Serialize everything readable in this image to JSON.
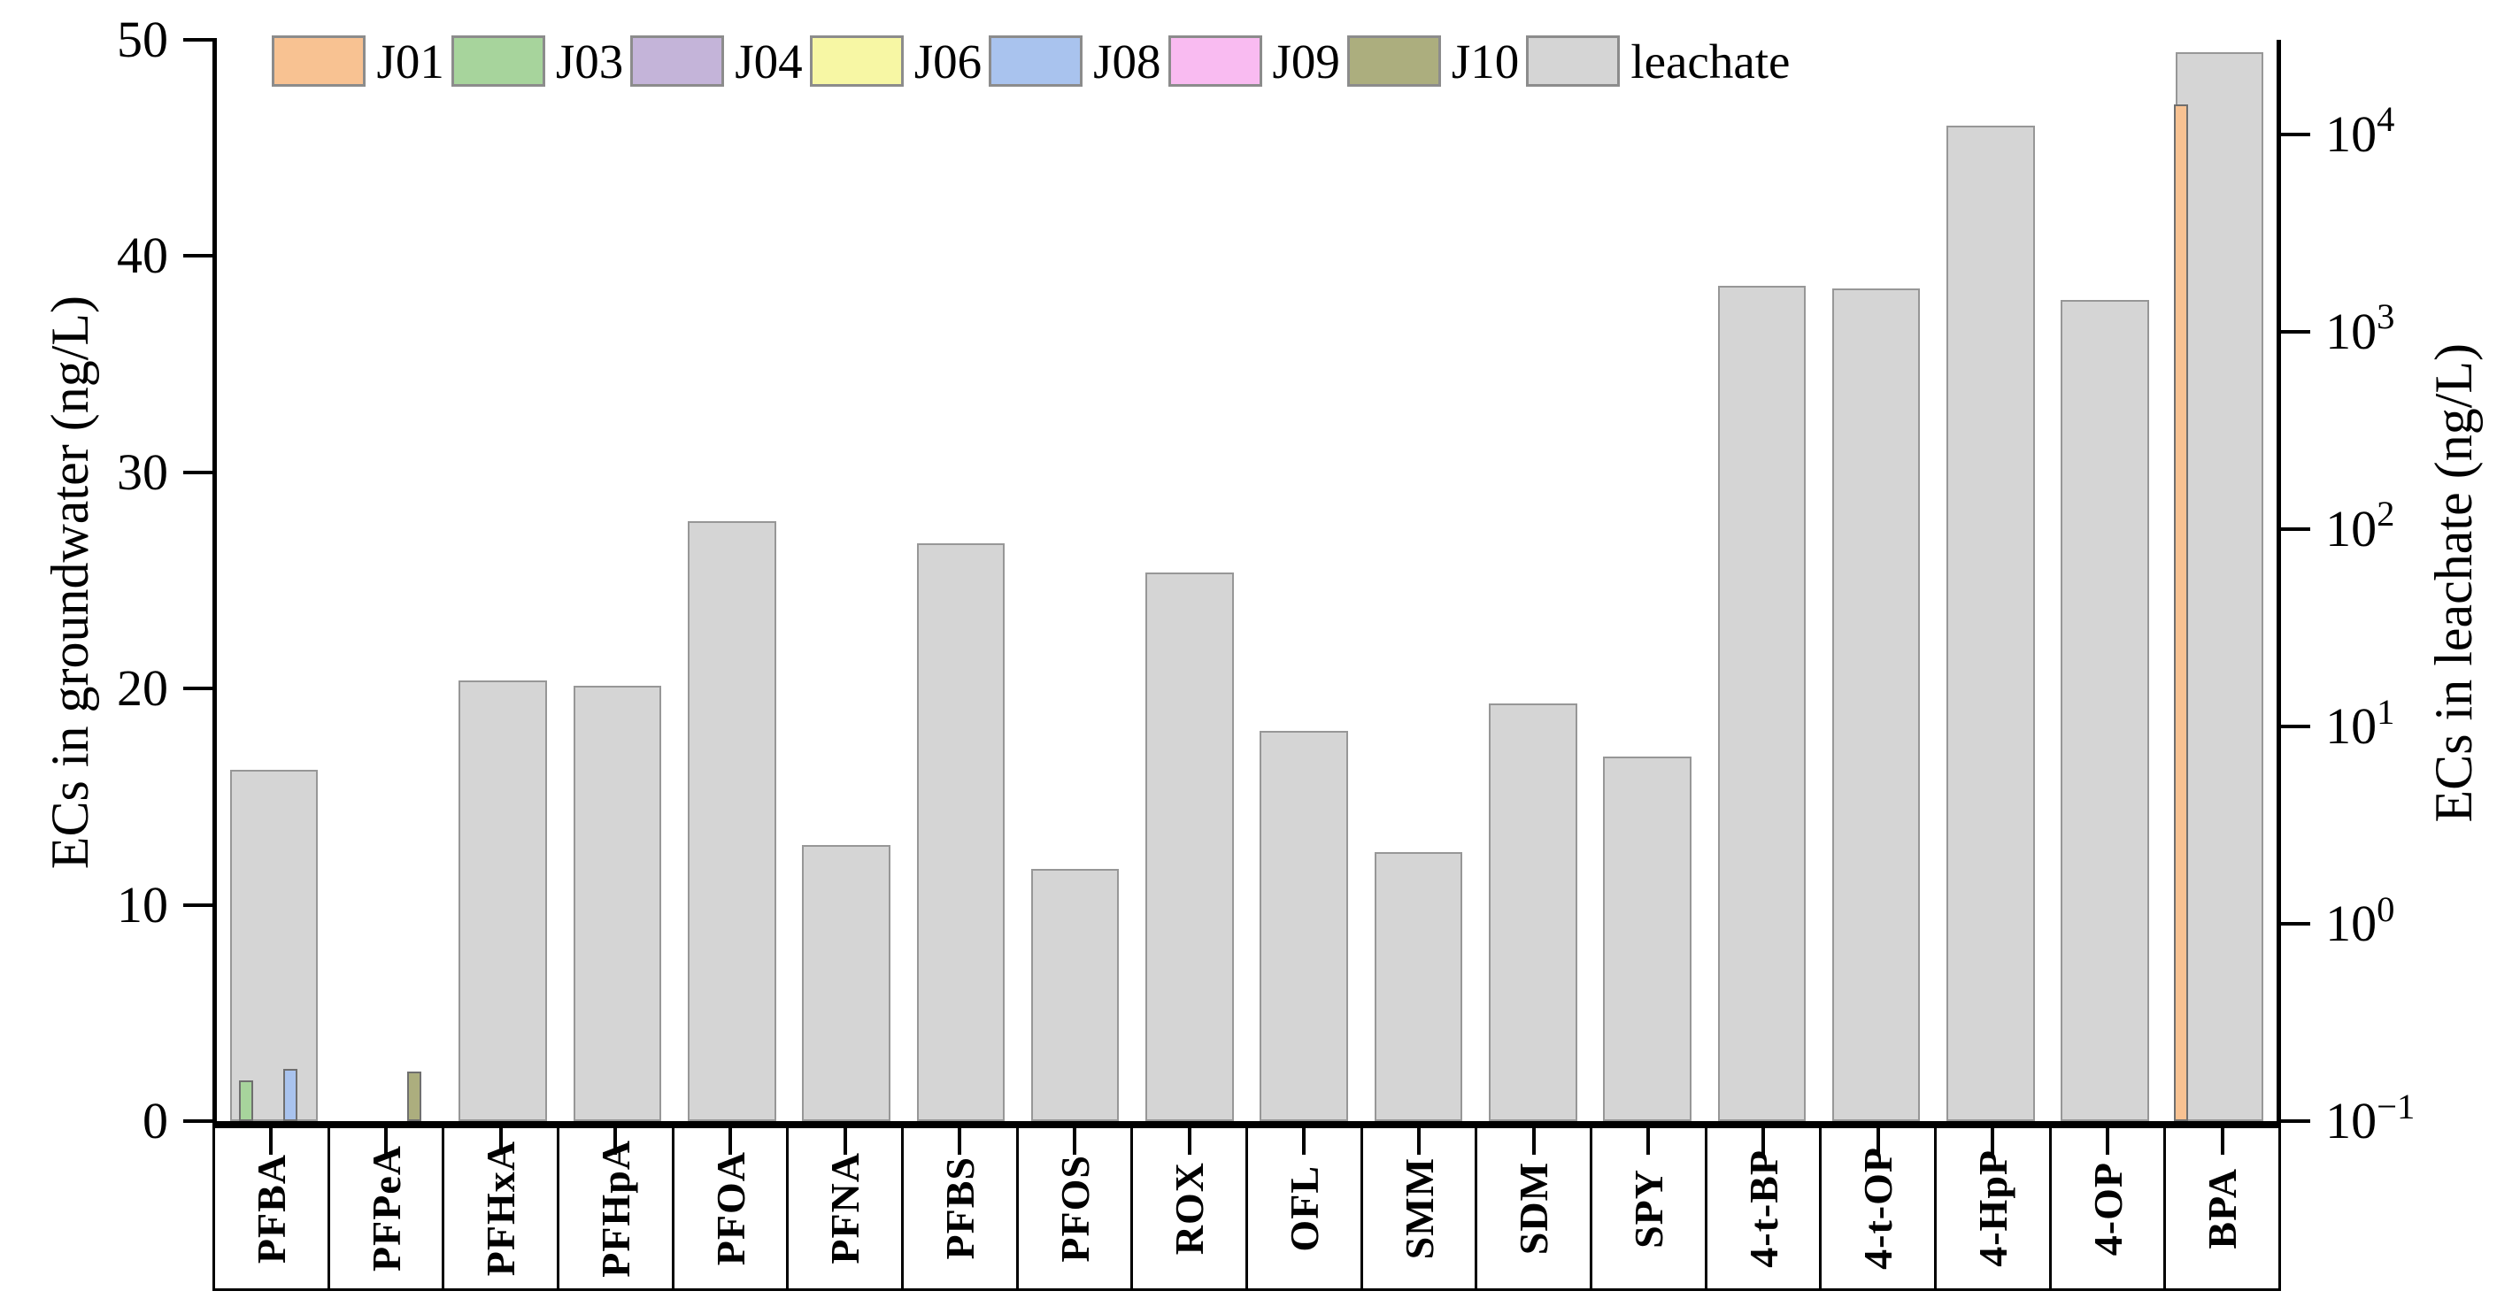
{
  "chart_data": {
    "type": "bar",
    "title": "",
    "categories": [
      "PFBA",
      "PFPeA",
      "PFHxA",
      "PFHpA",
      "PFOA",
      "PFNA",
      "PFBS",
      "PFOS",
      "ROX",
      "OFL",
      "SMM",
      "SDM",
      "SPY",
      "4-t-BP",
      "4-t-OP",
      "4-HpP",
      "4-OP",
      "BPA"
    ],
    "left_axis": {
      "label": "ECs in groundwater (ng/L)",
      "scale": "linear",
      "min": 0,
      "max": 50,
      "ticks": [
        0,
        10,
        20,
        30,
        40,
        50
      ]
    },
    "right_axis": {
      "label": "ECs in leachate (ng/L)",
      "scale": "log",
      "tick_exponents": [
        -1,
        0,
        1,
        2,
        3,
        4
      ],
      "min_exponent": -1,
      "top_exponent": 4.478
    },
    "legend": [
      {
        "id": "J01",
        "color": "#f8c292"
      },
      {
        "id": "J03",
        "color": "#a7d49c"
      },
      {
        "id": "J04",
        "color": "#c4b4d9"
      },
      {
        "id": "J06",
        "color": "#f7f7a4"
      },
      {
        "id": "J08",
        "color": "#a9c3ee"
      },
      {
        "id": "J09",
        "color": "#f9bbf1"
      },
      {
        "id": "J10",
        "color": "#acae7e"
      },
      {
        "id": "leachate",
        "color": "#d5d5d5"
      }
    ],
    "series": [
      {
        "name": "leachate",
        "axis": "right",
        "unit": "ng/L",
        "values_by_category": {
          "PFBA": 6.0,
          "PFPeA": null,
          "PFHxA": 17,
          "PFHpA": 16,
          "PFOA": 110,
          "PFNA": 2.5,
          "PFBS": 85,
          "PFOS": 1.9,
          "ROX": 60,
          "OFL": 9.5,
          "SMM": 2.3,
          "SDM": 13,
          "SPY": 7.0,
          "4-t-BP": 1700,
          "4-t-OP": 1650,
          "4-HpP": 11000,
          "4-OP": 1450,
          "BPA": 26000
        }
      },
      {
        "name": "groundwater",
        "axis": "left",
        "unit": "ng/L",
        "points": [
          {
            "category": "PFBA",
            "station": "J03",
            "value": 1.9,
            "slot_offset": 0.19
          },
          {
            "category": "PFBA",
            "station": "J08",
            "value": 2.4,
            "slot_offset": 0.58
          },
          {
            "category": "PFPeA",
            "station": "J10",
            "value": 2.3,
            "slot_offset": 0.66
          },
          {
            "category": "BPA",
            "station": "J01",
            "value": 47,
            "slot_offset": 0.1
          }
        ]
      }
    ],
    "layout": {
      "grid": false,
      "legend_position": "top inside, single row",
      "bar_fill_fraction_of_slot": 0.77,
      "bar_left_margin_fraction": 0.115,
      "groundwater_bar_width_fraction": 0.125
    }
  }
}
